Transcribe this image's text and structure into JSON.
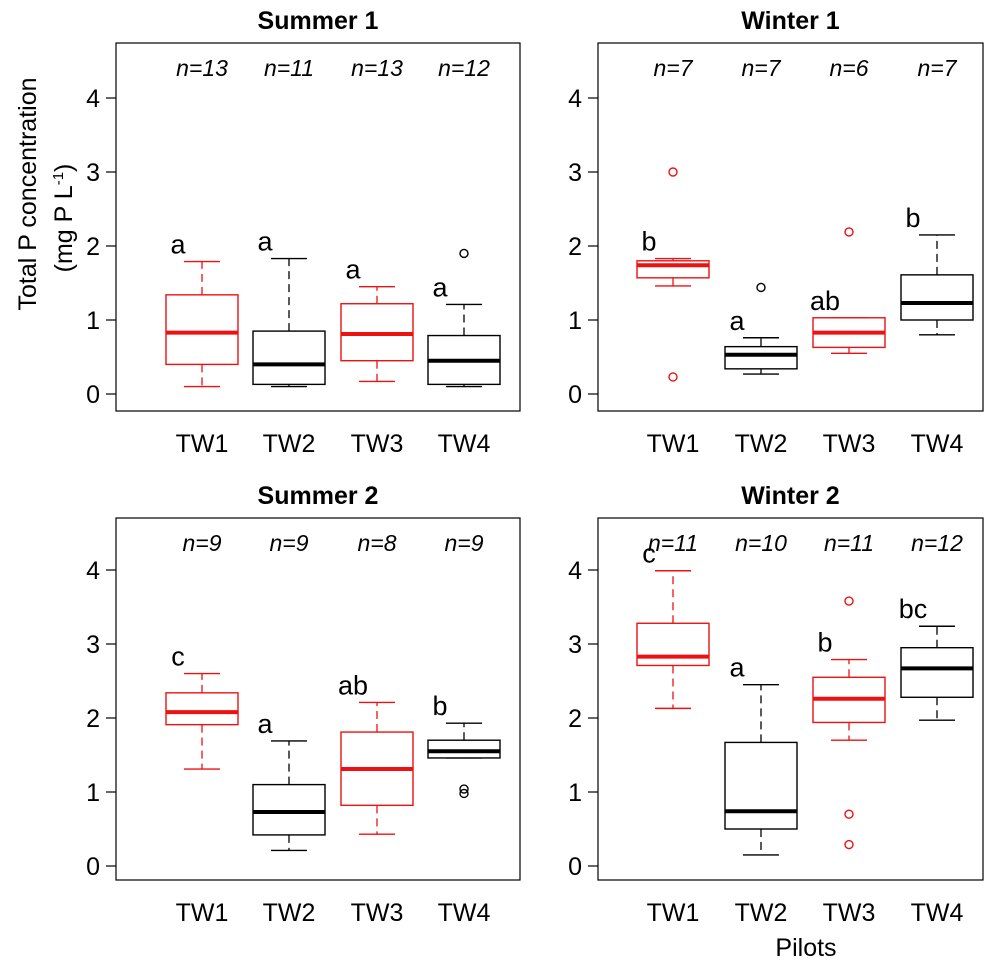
{
  "ylabel_line1": "Total P concentration",
  "ylabel_line2_prefix": "(mg P L",
  "ylabel_line2_sup": "-1",
  "ylabel_line2_suffix": ")",
  "xlabel": "Pilots",
  "colors": {
    "red": "#ee1111",
    "black": "#000000"
  },
  "chart_data": [
    {
      "type": "box",
      "title": "Summer 1",
      "ylim": [
        0,
        4.5
      ],
      "yticks": [
        0,
        1,
        2,
        3,
        4
      ],
      "categories": [
        "TW1",
        "TW2",
        "TW3",
        "TW4"
      ],
      "series": [
        {
          "category": "TW1",
          "color": "red",
          "n": "n=13",
          "group": "a",
          "min": 0.1,
          "q1": 0.4,
          "median": 0.83,
          "q3": 1.34,
          "max": 1.79,
          "outliers": []
        },
        {
          "category": "TW2",
          "color": "black",
          "n": "n=11",
          "group": "a",
          "min": 0.1,
          "q1": 0.13,
          "median": 0.4,
          "q3": 0.85,
          "max": 1.83,
          "outliers": []
        },
        {
          "category": "TW3",
          "color": "red",
          "n": "n=13",
          "group": "a",
          "min": 0.17,
          "q1": 0.45,
          "median": 0.81,
          "q3": 1.22,
          "max": 1.45,
          "outliers": []
        },
        {
          "category": "TW4",
          "color": "black",
          "n": "n=12",
          "group": "a",
          "min": 0.1,
          "q1": 0.13,
          "median": 0.45,
          "q3": 0.79,
          "max": 1.21,
          "outliers": [
            1.9
          ]
        }
      ]
    },
    {
      "type": "box",
      "title": "Winter 1",
      "ylim": [
        0,
        4.5
      ],
      "yticks": [
        0,
        1,
        2,
        3,
        4
      ],
      "categories": [
        "TW1",
        "TW2",
        "TW3",
        "TW4"
      ],
      "series": [
        {
          "category": "TW1",
          "color": "red",
          "n": "n=7",
          "group": "b",
          "min": 1.46,
          "q1": 1.57,
          "median": 1.74,
          "q3": 1.8,
          "max": 1.83,
          "outliers": [
            3.0,
            0.23
          ]
        },
        {
          "category": "TW2",
          "color": "black",
          "n": "n=7",
          "group": "a",
          "min": 0.27,
          "q1": 0.34,
          "median": 0.53,
          "q3": 0.64,
          "max": 0.76,
          "outliers": [
            1.44
          ]
        },
        {
          "category": "TW3",
          "color": "red",
          "n": "n=6",
          "group": "ab",
          "min": 0.55,
          "q1": 0.63,
          "median": 0.83,
          "q3": 1.03,
          "max": 1.03,
          "outliers": [
            2.19
          ]
        },
        {
          "category": "TW4",
          "color": "black",
          "n": "n=7",
          "group": "b",
          "min": 0.8,
          "q1": 1.0,
          "median": 1.23,
          "q3": 1.61,
          "max": 2.15,
          "outliers": []
        }
      ]
    },
    {
      "type": "box",
      "title": "Summer 2",
      "ylim": [
        0,
        4.5
      ],
      "yticks": [
        0,
        1,
        2,
        3,
        4
      ],
      "categories": [
        "TW1",
        "TW2",
        "TW3",
        "TW4"
      ],
      "series": [
        {
          "category": "TW1",
          "color": "red",
          "n": "n=9",
          "group": "c",
          "min": 1.31,
          "q1": 1.91,
          "median": 2.08,
          "q3": 2.34,
          "max": 2.6,
          "outliers": []
        },
        {
          "category": "TW2",
          "color": "black",
          "n": "n=9",
          "group": "a",
          "min": 0.21,
          "q1": 0.42,
          "median": 0.73,
          "q3": 1.1,
          "max": 1.69,
          "outliers": []
        },
        {
          "category": "TW3",
          "color": "red",
          "n": "n=8",
          "group": "ab",
          "min": 0.43,
          "q1": 0.82,
          "median": 1.31,
          "q3": 1.81,
          "max": 2.21,
          "outliers": []
        },
        {
          "category": "TW4",
          "color": "black",
          "n": "n=9",
          "group": "b",
          "min": 1.46,
          "q1": 1.46,
          "median": 1.55,
          "q3": 1.7,
          "max": 1.93,
          "outliers": [
            1.04,
            0.98
          ]
        }
      ]
    },
    {
      "type": "box",
      "title": "Winter 2",
      "ylim": [
        0,
        4.5
      ],
      "yticks": [
        0,
        1,
        2,
        3,
        4
      ],
      "categories": [
        "TW1",
        "TW2",
        "TW3",
        "TW4"
      ],
      "series": [
        {
          "category": "TW1",
          "color": "red",
          "n": "n=11",
          "group": "c",
          "min": 2.13,
          "q1": 2.71,
          "median": 2.83,
          "q3": 3.28,
          "max": 3.99,
          "outliers": []
        },
        {
          "category": "TW2",
          "color": "black",
          "n": "n=10",
          "group": "a",
          "min": 0.15,
          "q1": 0.5,
          "median": 0.74,
          "q3": 1.67,
          "max": 2.45,
          "outliers": []
        },
        {
          "category": "TW3",
          "color": "red",
          "n": "n=11",
          "group": "b",
          "min": 1.7,
          "q1": 1.94,
          "median": 2.26,
          "q3": 2.55,
          "max": 2.79,
          "outliers": [
            3.58,
            0.7,
            0.29
          ]
        },
        {
          "category": "TW4",
          "color": "black",
          "n": "n=12",
          "group": "bc",
          "min": 1.97,
          "q1": 2.28,
          "median": 2.67,
          "q3": 2.95,
          "max": 3.24,
          "outliers": []
        }
      ]
    }
  ]
}
